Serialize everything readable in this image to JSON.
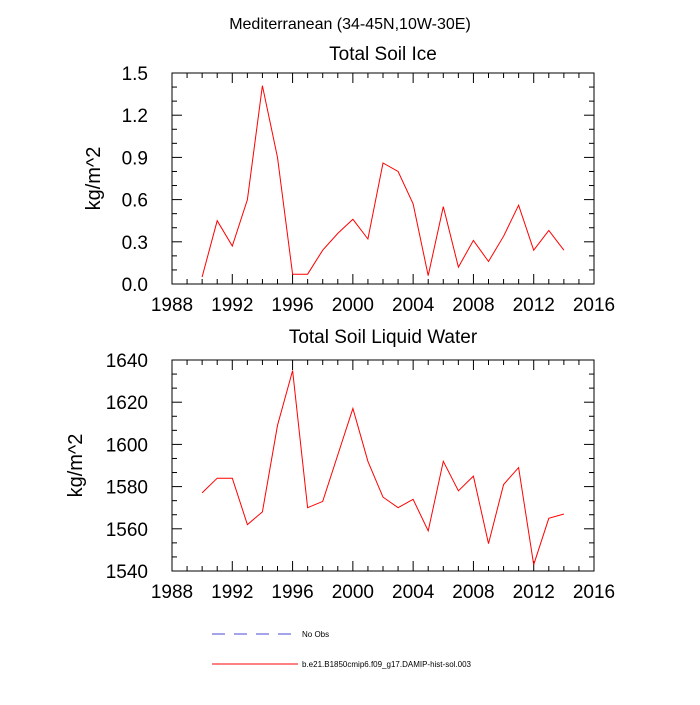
{
  "figure_title": "Mediterranean (34-45N,10W-30E)",
  "chart_data": [
    {
      "type": "line",
      "title": "Total Soil Ice",
      "xlabel": "",
      "ylabel": "kg/m^2",
      "xlim": [
        1988,
        2016
      ],
      "ylim": [
        0.0,
        1.5
      ],
      "xticks": [
        1988,
        1992,
        1996,
        2000,
        2004,
        2008,
        2012,
        2016
      ],
      "yticks": [
        "0.0",
        "0.3",
        "0.6",
        "0.9",
        "1.2",
        "1.5"
      ],
      "grid": false,
      "x": [
        1990,
        1991,
        1992,
        1993,
        1994,
        1995,
        1996,
        1997,
        1998,
        1999,
        2000,
        2001,
        2002,
        2003,
        2004,
        2005,
        2006,
        2007,
        2008,
        2009,
        2010,
        2011,
        2012,
        2013,
        2014
      ],
      "series": [
        {
          "name": "b.e21.B1850cmip6.f09_g17.DAMIP-hist-sol.003",
          "color": "#ff0000",
          "values": [
            0.05,
            0.45,
            0.27,
            0.6,
            1.41,
            0.9,
            0.07,
            0.07,
            0.24,
            0.36,
            0.46,
            0.32,
            0.86,
            0.8,
            0.57,
            0.06,
            0.55,
            0.12,
            0.31,
            0.16,
            0.34,
            0.56,
            0.24,
            0.38,
            0.24
          ]
        }
      ]
    },
    {
      "type": "line",
      "title": "Total Soil Liquid Water",
      "xlabel": "",
      "ylabel": "kg/m^2",
      "xlim": [
        1988,
        2016
      ],
      "ylim": [
        1540,
        1640
      ],
      "xticks": [
        1988,
        1992,
        1996,
        2000,
        2004,
        2008,
        2012,
        2016
      ],
      "yticks": [
        "1540",
        "1560",
        "1580",
        "1600",
        "1620",
        "1640"
      ],
      "grid": false,
      "x": [
        1990,
        1991,
        1992,
        1993,
        1994,
        1995,
        1996,
        1997,
        1998,
        1999,
        2000,
        2001,
        2002,
        2003,
        2004,
        2005,
        2006,
        2007,
        2008,
        2009,
        2010,
        2011,
        2012,
        2013,
        2014
      ],
      "series": [
        {
          "name": "b.e21.B1850cmip6.f09_g17.DAMIP-hist-sol.003",
          "color": "#ff0000",
          "values": [
            1577,
            1584,
            1584,
            1562,
            1568,
            1609,
            1635,
            1570,
            1573,
            1595,
            1617,
            1592,
            1575,
            1570,
            1574,
            1559,
            1592,
            1578,
            1585,
            1553,
            1581,
            1589,
            1543,
            1565,
            1567
          ]
        }
      ]
    }
  ],
  "legend": {
    "placement": "bottom",
    "items": [
      {
        "label": "No Obs",
        "color": "#4a4ad6",
        "style": "dashed"
      },
      {
        "label": "b.e21.B1850cmip6.f09_g17.DAMIP-hist-sol.003",
        "color": "#ff0000",
        "style": "solid"
      }
    ]
  }
}
